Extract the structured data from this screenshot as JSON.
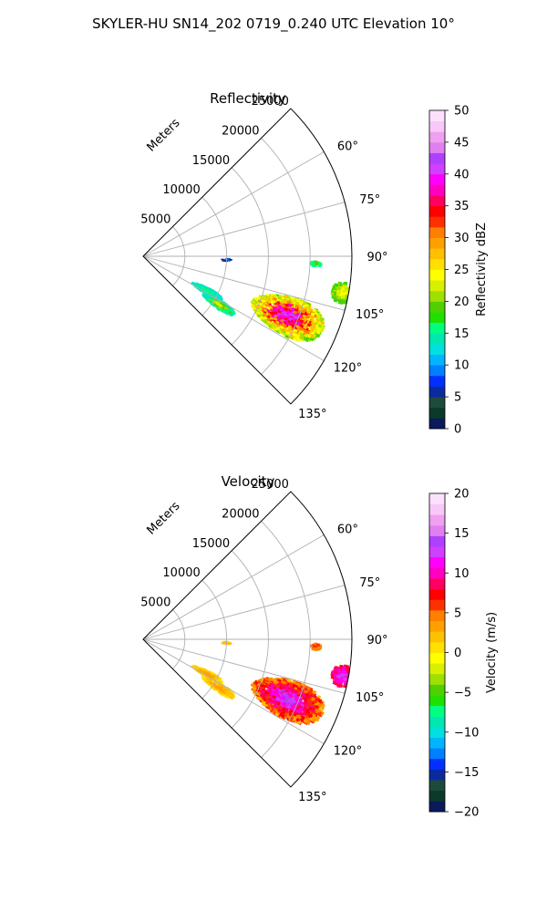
{
  "figure_title": "SKYLER-HU  SN14_202  0719_0.240 UTC Elevation 10°",
  "chart_data": [
    {
      "type": "polar-sector-heatmap",
      "title": "Reflectivity",
      "radial_label": "Meters",
      "radial_ticks": [
        5000,
        10000,
        15000,
        20000,
        25000
      ],
      "radial_max": 25000,
      "azimuth_range_deg": [
        45,
        135
      ],
      "azimuth_ticks": [
        "60°",
        "75°",
        "90°",
        "105°",
        "120°",
        "135°"
      ],
      "colorbar": {
        "label": "Reflectivity dBZ",
        "range": [
          0,
          50
        ],
        "ticks": [
          "0",
          "5",
          "10",
          "15",
          "20",
          "25",
          "30",
          "35",
          "40",
          "45",
          "50"
        ],
        "colors": [
          "#0a1a5a",
          "#0b3a2a",
          "#1e4a3a",
          "#0a2aa0",
          "#0030ff",
          "#0080ff",
          "#00b4ff",
          "#00e0e0",
          "#00e8b0",
          "#00ff80",
          "#20e000",
          "#50d000",
          "#a0e000",
          "#d8f000",
          "#ffff00",
          "#ffe000",
          "#ffc000",
          "#ffa000",
          "#ff8000",
          "#ff3000",
          "#ff0000",
          "#ff0060",
          "#ff00c0",
          "#ff00ff",
          "#d040ff",
          "#b040ff",
          "#e080f0",
          "#f0a0f0",
          "#f8c8f8",
          "#fce0fc"
        ]
      }
    },
    {
      "type": "polar-sector-heatmap",
      "title": "Velocity",
      "radial_label": "Meters",
      "radial_ticks": [
        5000,
        10000,
        15000,
        20000,
        25000
      ],
      "radial_max": 25000,
      "azimuth_range_deg": [
        45,
        135
      ],
      "azimuth_ticks": [
        "60°",
        "75°",
        "90°",
        "105°",
        "120°",
        "135°"
      ],
      "colorbar": {
        "label": "Velocity (m/s)",
        "range": [
          -20,
          20
        ],
        "ticks": [
          "−20",
          "−15",
          "−10",
          "−5",
          "0",
          "5",
          "10",
          "15",
          "20"
        ],
        "colors": [
          "#0a1a5a",
          "#0b3a2a",
          "#1e4a3a",
          "#0a2aa0",
          "#0030ff",
          "#0080ff",
          "#00b4ff",
          "#00e0e0",
          "#00e8b0",
          "#00ff80",
          "#20e000",
          "#50d000",
          "#a0e000",
          "#d8f000",
          "#ffff00",
          "#ffe000",
          "#ffc000",
          "#ffa000",
          "#ff8000",
          "#ff3000",
          "#ff0000",
          "#ff0060",
          "#ff00c0",
          "#ff00ff",
          "#d040ff",
          "#b040ff",
          "#e080f0",
          "#f0a0f0",
          "#f8c8f8",
          "#fce0fc"
        ]
      }
    }
  ]
}
